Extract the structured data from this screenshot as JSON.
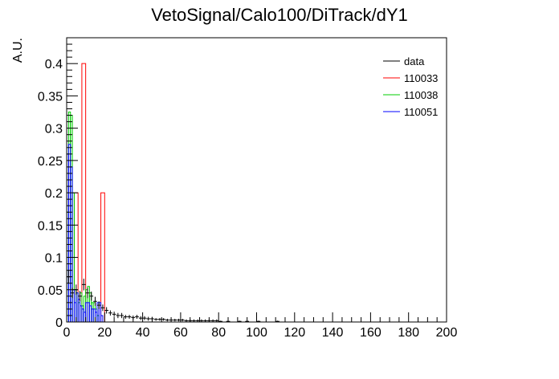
{
  "chart_data": {
    "type": "histogram",
    "title": "VetoSignal/Calo100/DiTrack/dY1",
    "xlabel": "",
    "ylabel": "A.U.",
    "xlim": [
      0,
      200
    ],
    "ylim": [
      0,
      0.44
    ],
    "x_ticks": [
      "0",
      "20",
      "40",
      "60",
      "80",
      "100",
      "120",
      "140",
      "160",
      "180",
      "200"
    ],
    "y_ticks": [
      "0",
      "0.05",
      "0.1",
      "0.15",
      "0.2",
      "0.25",
      "0.3",
      "0.35",
      "0.4"
    ],
    "bin_width": 2,
    "legend_position": "top-right",
    "series": [
      {
        "name": "data",
        "color": "#000000",
        "style": "points-with-error-bars",
        "x": [
          1,
          3,
          5,
          7,
          9,
          11,
          13,
          15,
          17,
          19,
          21,
          23,
          25,
          27,
          29,
          31,
          33,
          35,
          37,
          39,
          41,
          43,
          45,
          47,
          49,
          51,
          53,
          55,
          57,
          59,
          61,
          63,
          65,
          67,
          69,
          71,
          73,
          75,
          77,
          79,
          81,
          85,
          91,
          95,
          101,
          111
        ],
        "y": [
          0.07,
          0.045,
          0.05,
          0.04,
          0.058,
          0.045,
          0.04,
          0.032,
          0.026,
          0.022,
          0.018,
          0.014,
          0.012,
          0.01,
          0.01,
          0.008,
          0.008,
          0.007,
          0.008,
          0.006,
          0.006,
          0.005,
          0.005,
          0.004,
          0.004,
          0.004,
          0.003,
          0.003,
          0.003,
          0.003,
          0.003,
          0.002,
          0.002,
          0.002,
          0.002,
          0.002,
          0.002,
          0.002,
          0.002,
          0.002,
          0.001,
          0.001,
          0.001,
          0.001,
          0.001,
          0.001
        ],
        "err": [
          0.01,
          0.008,
          0.008,
          0.008,
          0.009,
          0.008,
          0.007,
          0.007,
          0.006,
          0.005,
          0.005,
          0.004,
          0.004,
          0.004,
          0.004,
          0.003,
          0.003,
          0.003,
          0.003,
          0.003,
          0.003,
          0.003,
          0.003,
          0.002,
          0.002,
          0.002,
          0.002,
          0.002,
          0.002,
          0.002,
          0.002,
          0.002,
          0.002,
          0.002,
          0.002,
          0.002,
          0.002,
          0.002,
          0.002,
          0.002,
          0.001,
          0.001,
          0.001,
          0.001,
          0.001,
          0.001
        ]
      },
      {
        "name": "110033",
        "color": "#ff0000",
        "style": "hist-outline",
        "bins": [
          [
            0,
            2,
            0.0
          ],
          [
            2,
            4,
            0.0
          ],
          [
            4,
            6,
            0.2
          ],
          [
            6,
            8,
            0.0
          ],
          [
            8,
            10,
            0.4
          ],
          [
            10,
            12,
            0.0
          ],
          [
            16,
            18,
            0.0
          ],
          [
            18,
            20,
            0.2
          ]
        ]
      },
      {
        "name": "110038",
        "color": "#00cc00",
        "style": "hist-outline",
        "bins": [
          [
            0,
            1,
            0.17
          ],
          [
            1,
            2,
            0.325
          ],
          [
            2,
            3,
            0.32
          ],
          [
            3,
            4,
            0.2
          ],
          [
            4,
            5,
            0.05
          ],
          [
            5,
            6,
            0.045
          ],
          [
            6,
            7,
            0.03
          ],
          [
            7,
            8,
            0.045
          ],
          [
            8,
            9,
            0.025
          ],
          [
            9,
            10,
            0.04
          ],
          [
            10,
            11,
            0.05
          ],
          [
            11,
            12,
            0.055
          ],
          [
            12,
            13,
            0.045
          ],
          [
            13,
            14,
            0.03
          ],
          [
            14,
            15,
            0.03
          ],
          [
            15,
            16,
            0.02
          ],
          [
            16,
            17,
            0.01
          ]
        ]
      },
      {
        "name": "110051",
        "color": "#0000ff",
        "style": "hist-outline",
        "bins": [
          [
            0,
            1,
            0.26
          ],
          [
            1,
            2,
            0.275
          ],
          [
            2,
            3,
            0.24
          ],
          [
            3,
            4,
            0.05
          ],
          [
            4,
            5,
            0.03
          ],
          [
            5,
            6,
            0.045
          ],
          [
            6,
            7,
            0.035
          ],
          [
            7,
            8,
            0.025
          ],
          [
            8,
            9,
            0.02
          ],
          [
            9,
            10,
            0.015
          ],
          [
            10,
            11,
            0.03
          ],
          [
            11,
            12,
            0.03
          ],
          [
            12,
            13,
            0.025
          ],
          [
            13,
            14,
            0.02
          ],
          [
            14,
            15,
            0.02
          ],
          [
            15,
            16,
            0.015
          ],
          [
            16,
            17,
            0.03
          ],
          [
            17,
            18,
            0.03
          ],
          [
            18,
            19,
            0.01
          ]
        ]
      }
    ]
  }
}
